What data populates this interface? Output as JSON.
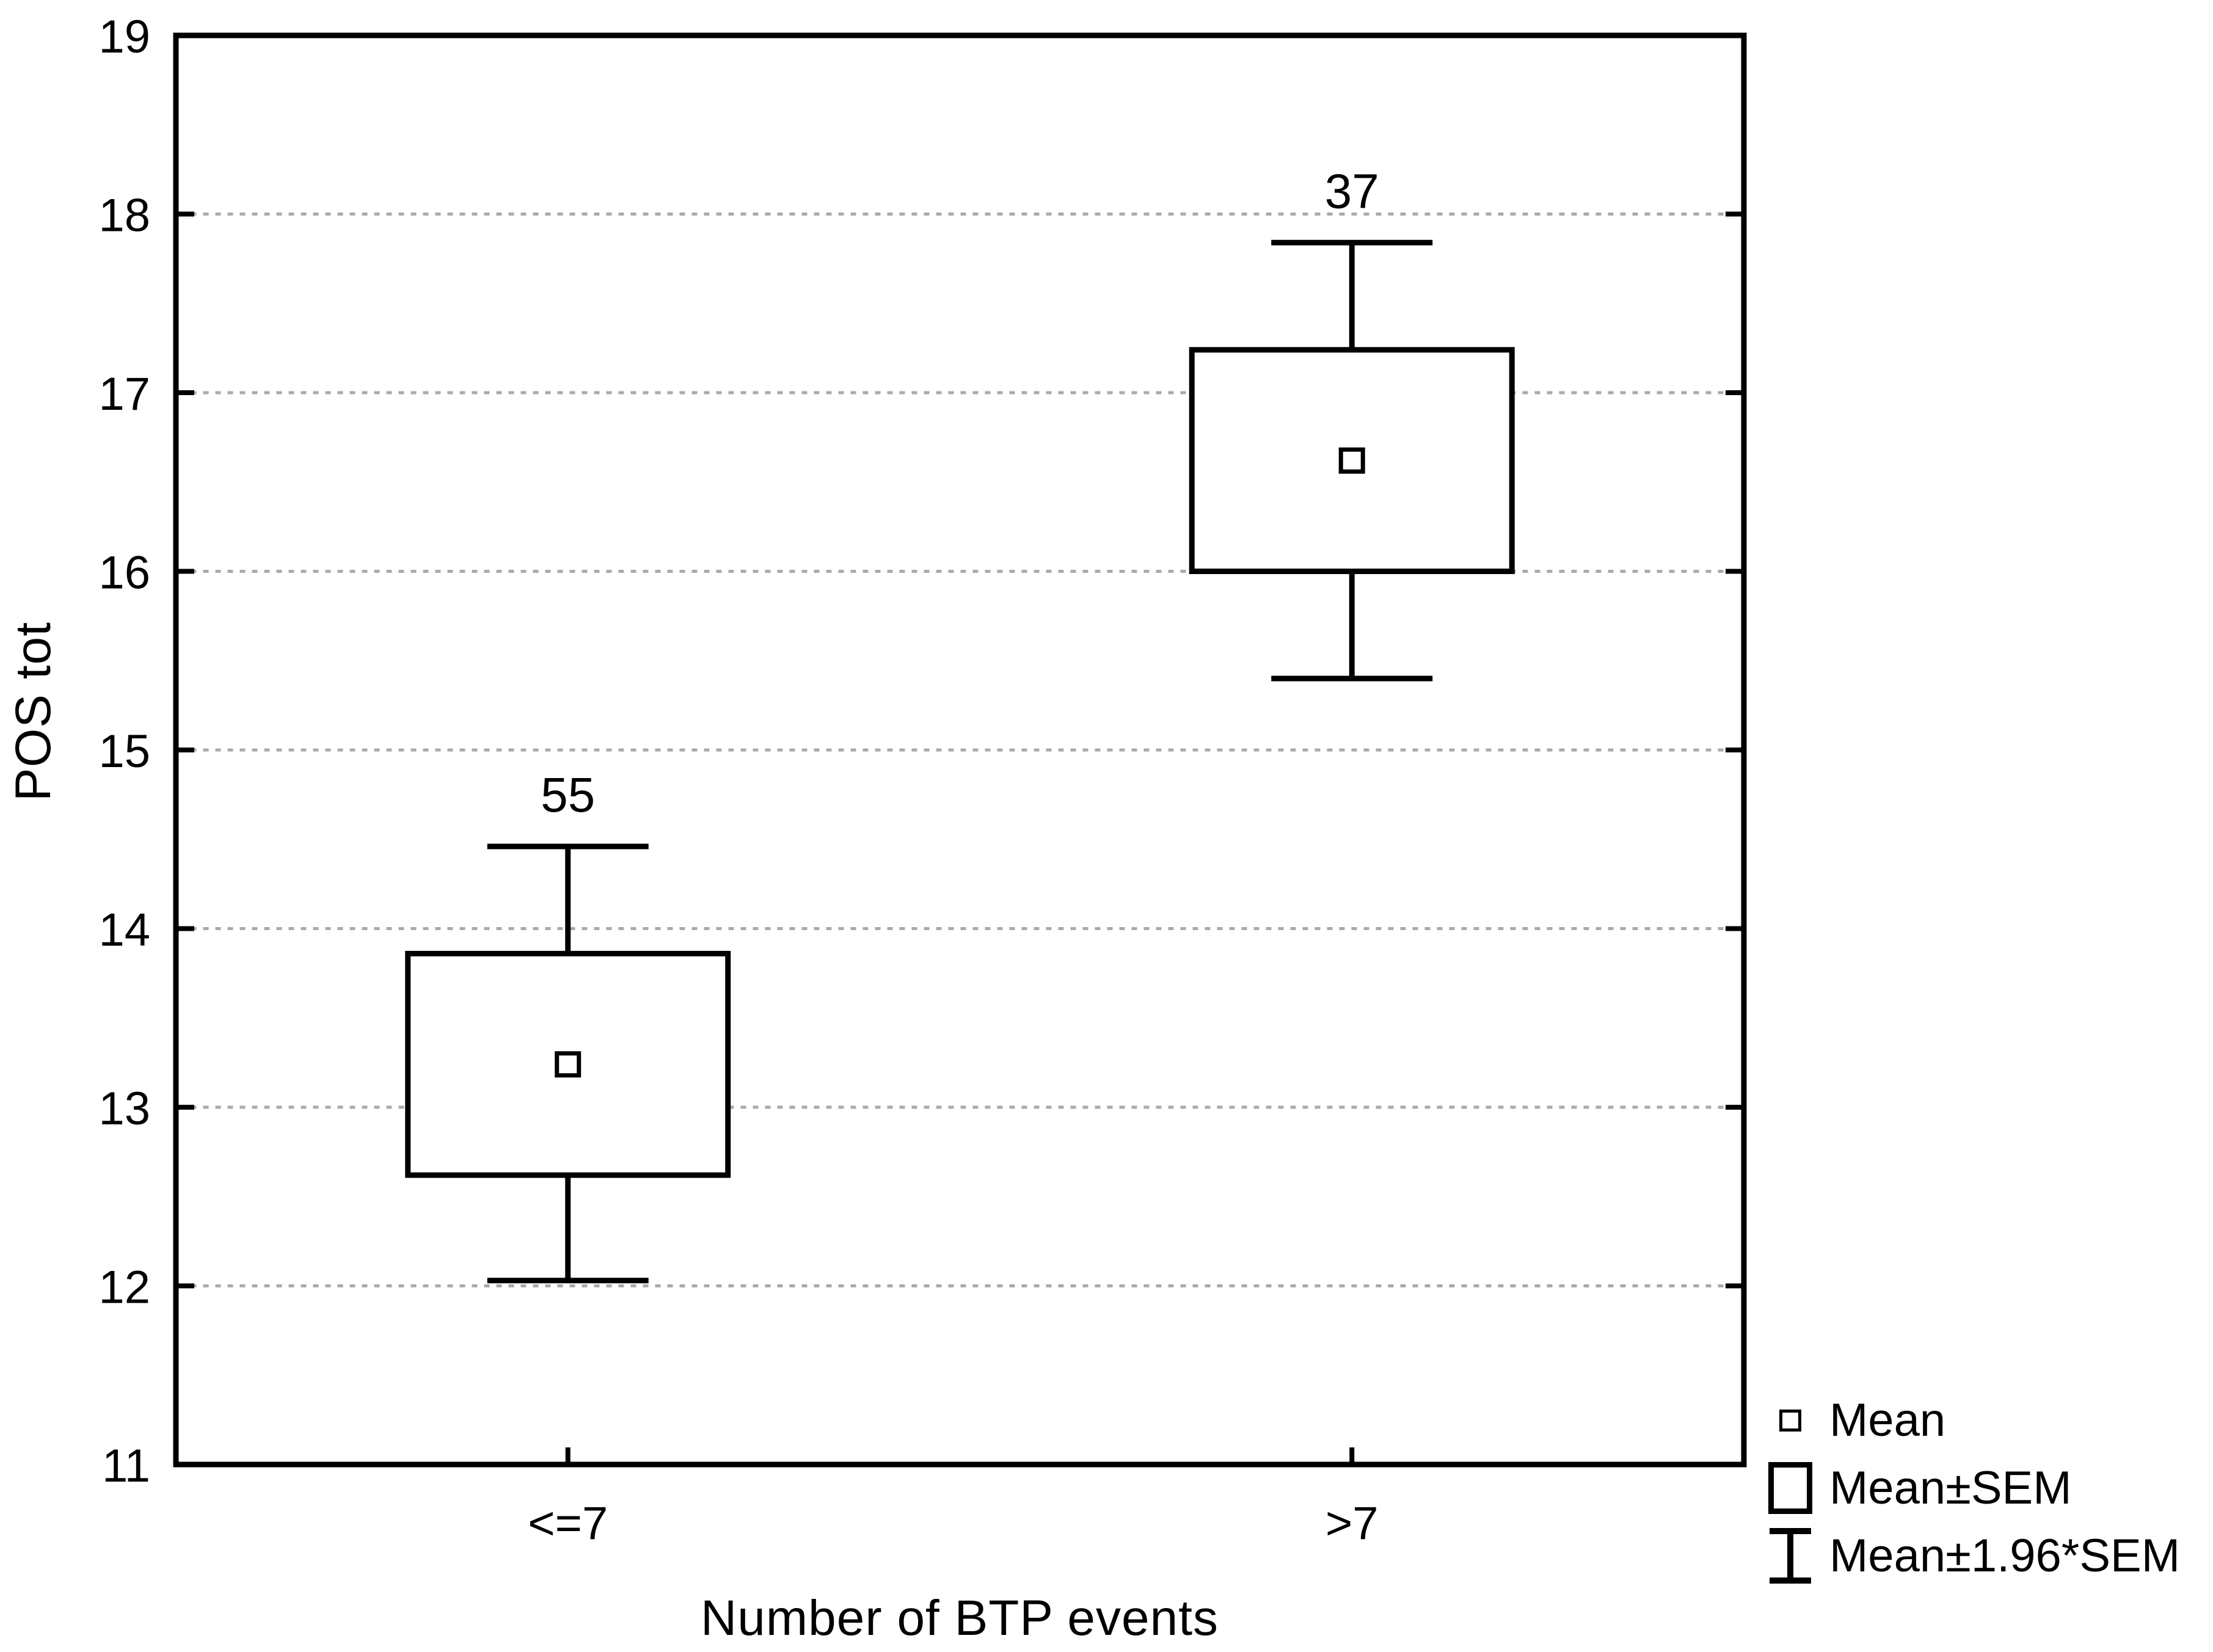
{
  "figure": {
    "background": "#ffffff"
  },
  "chart_data": {
    "type": "boxplot",
    "subtype": "mean-sem-whisker",
    "title": "",
    "xlabel": "Number of BTP events",
    "ylabel": "POS tot",
    "categories": [
      "<=7",
      ">7"
    ],
    "series": [
      {
        "category": "<=7",
        "n": 55,
        "mean": 13.24,
        "sem_low": 12.62,
        "sem_high": 13.86,
        "ci_low": 12.03,
        "ci_high": 14.46
      },
      {
        "category": ">7",
        "n": 37,
        "mean": 16.62,
        "sem_low": 16.0,
        "sem_high": 17.24,
        "ci_low": 15.4,
        "ci_high": 17.84
      }
    ],
    "ylim": [
      11,
      19
    ],
    "yticks": [
      11,
      12,
      13,
      14,
      15,
      16,
      17,
      18,
      19
    ],
    "grid": "horizontal dotted gray lines at integer values",
    "legend_position": "bottom-right outside plot",
    "legend": [
      {
        "icon": "mean-square",
        "label": "Mean"
      },
      {
        "icon": "sem-box",
        "label": "Mean±SEM"
      },
      {
        "icon": "ci-whisker",
        "label": "Mean±1.96*SEM"
      }
    ],
    "colors": {
      "line": "#000000",
      "grid": "#aaaaaa",
      "background": "#ffffff",
      "text": "#000000"
    }
  }
}
